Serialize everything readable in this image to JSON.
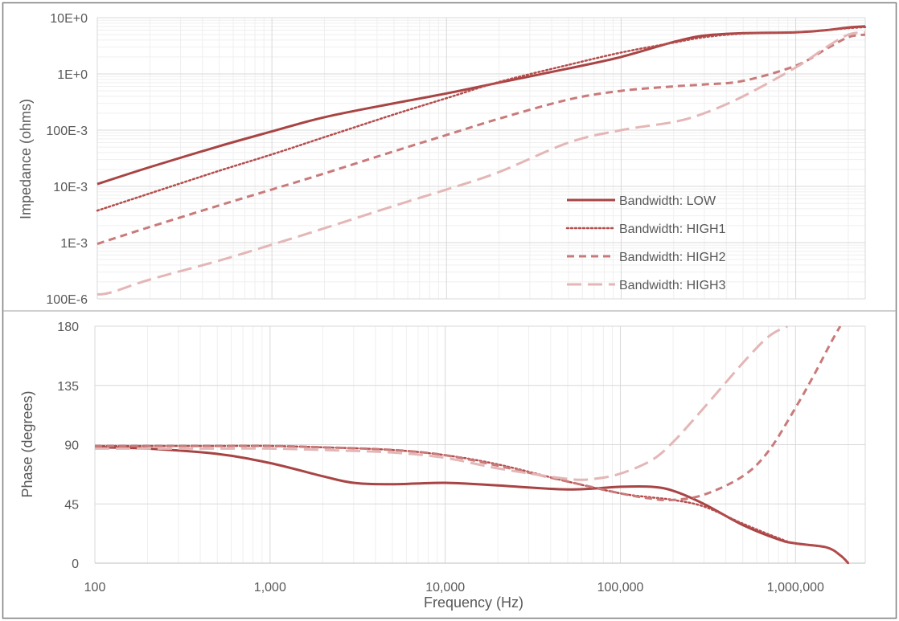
{
  "colors": {
    "low": "#A84444",
    "high1": "#B54D4D",
    "high2": "#C97A7A",
    "high3": "#E4B6B6",
    "grid_major": "#D9D9D9",
    "grid_minor": "#EFEFEF",
    "text": "#595959",
    "border": "#7F7F7F"
  },
  "chart_data": [
    {
      "type": "line",
      "panel": "impedance",
      "title": "",
      "xlabel": "",
      "ylabel": "Impedance (ohms)",
      "xscale": "log",
      "yscale": "log",
      "xlim": [
        100,
        2500000
      ],
      "ylim": [
        0.0001,
        10
      ],
      "grid": true,
      "legend_position": "lower-right",
      "y_tick_values": [
        0.0001,
        0.001,
        0.01,
        0.1,
        1,
        10
      ],
      "y_tick_labels": [
        "100E-6",
        "1E-3",
        "10E-3",
        "100E-3",
        "1E+0",
        "10E+0"
      ],
      "series": [
        {
          "name": "Bandwidth: LOW",
          "style": "solid",
          "x": [
            100,
            200,
            500,
            1000,
            2000,
            5000,
            10000,
            20000,
            50000,
            100000,
            200000,
            300000,
            500000,
            1000000,
            1500000,
            2000000,
            2500000
          ],
          "y": [
            0.011,
            0.022,
            0.052,
            0.095,
            0.17,
            0.3,
            0.45,
            0.7,
            1.25,
            2.0,
            3.7,
            4.8,
            5.3,
            5.5,
            6.0,
            6.7,
            7.0
          ]
        },
        {
          "name": "Bandwidth: HIGH1",
          "style": "dotted",
          "x": [
            100,
            200,
            500,
            1000,
            2000,
            5000,
            10000,
            20000,
            50000,
            100000,
            200000,
            300000,
            500000,
            1000000,
            1500000,
            2000000,
            2500000
          ],
          "y": [
            0.0037,
            0.0075,
            0.019,
            0.037,
            0.075,
            0.19,
            0.37,
            0.72,
            1.45,
            2.4,
            3.6,
            4.5,
            5.2,
            5.5,
            6.0,
            6.5,
            6.8
          ]
        },
        {
          "name": "Bandwidth: HIGH2",
          "style": "dashed",
          "x": [
            100,
            200,
            500,
            1000,
            2000,
            5000,
            10000,
            20000,
            50000,
            100000,
            200000,
            300000,
            500000,
            1000000,
            1500000,
            2000000,
            2500000
          ],
          "y": [
            0.00095,
            0.0019,
            0.0046,
            0.0088,
            0.017,
            0.042,
            0.082,
            0.16,
            0.35,
            0.5,
            0.6,
            0.65,
            0.75,
            1.4,
            2.8,
            4.5,
            5.0
          ]
        },
        {
          "name": "Bandwidth: HIGH3",
          "style": "longdash",
          "x": [
            100,
            120,
            200,
            500,
            1000,
            2000,
            5000,
            10000,
            20000,
            50000,
            100000,
            200000,
            300000,
            500000,
            1000000,
            1500000,
            2000000,
            2500000
          ],
          "y": [
            0.00012,
            0.00013,
            0.00022,
            0.00048,
            0.00092,
            0.0018,
            0.0045,
            0.0088,
            0.018,
            0.06,
            0.1,
            0.14,
            0.2,
            0.4,
            1.3,
            3.0,
            5.0,
            5.5
          ]
        }
      ]
    },
    {
      "type": "line",
      "panel": "phase",
      "title": "",
      "xlabel": "Frequency (Hz)",
      "ylabel": "Phase (degrees)",
      "xscale": "log",
      "yscale": "linear",
      "xlim": [
        100,
        2500000
      ],
      "ylim": [
        0,
        180
      ],
      "grid": true,
      "x_tick_values": [
        100,
        1000,
        10000,
        100000,
        1000000
      ],
      "x_tick_labels": [
        "100",
        "1,000",
        "10,000",
        "100,000",
        "1,000,000"
      ],
      "y_tick_values": [
        0,
        45,
        90,
        135,
        180
      ],
      "y_tick_labels": [
        "0",
        "45",
        "90",
        "135",
        "180"
      ],
      "series": [
        {
          "name": "Bandwidth: LOW",
          "style": "solid",
          "x": [
            100,
            200,
            500,
            1000,
            2000,
            3000,
            5000,
            10000,
            20000,
            50000,
            100000,
            150000,
            200000,
            300000,
            500000,
            800000,
            1000000,
            1500000,
            1800000,
            2000000
          ],
          "y": [
            88,
            87,
            83,
            76,
            66,
            61,
            60,
            61,
            59,
            56,
            58,
            58,
            55,
            45,
            29,
            18,
            15,
            12,
            6,
            0
          ]
        },
        {
          "name": "Bandwidth: HIGH1",
          "style": "dotted",
          "x": [
            100,
            200,
            500,
            1000,
            2000,
            5000,
            10000,
            20000,
            50000,
            100000,
            150000,
            200000,
            300000,
            500000,
            800000,
            1000000,
            1500000,
            1800000,
            2000000
          ],
          "y": [
            89,
            89,
            89,
            89,
            88,
            86,
            82,
            75,
            62,
            53,
            50,
            48,
            43,
            30,
            19,
            15,
            12,
            6,
            0
          ]
        },
        {
          "name": "Bandwidth: HIGH2",
          "style": "dashed",
          "x": [
            100,
            200,
            500,
            1000,
            2000,
            5000,
            10000,
            20000,
            50000,
            100000,
            150000,
            200000,
            300000,
            500000,
            700000,
            1000000,
            1300000,
            1600000,
            1800000
          ],
          "y": [
            89,
            89,
            89,
            89,
            88,
            86,
            82,
            74,
            62,
            53,
            49,
            48,
            52,
            66,
            85,
            118,
            145,
            168,
            180
          ]
        },
        {
          "name": "Bandwidth: HIGH3",
          "style": "longdash",
          "x": [
            100,
            200,
            500,
            1000,
            2000,
            5000,
            10000,
            20000,
            50000,
            70000,
            100000,
            150000,
            200000,
            300000,
            500000,
            700000,
            900000
          ],
          "y": [
            87,
            87,
            87,
            87,
            86,
            84,
            80,
            72,
            64,
            64,
            68,
            78,
            92,
            118,
            152,
            172,
            180
          ]
        }
      ]
    }
  ]
}
